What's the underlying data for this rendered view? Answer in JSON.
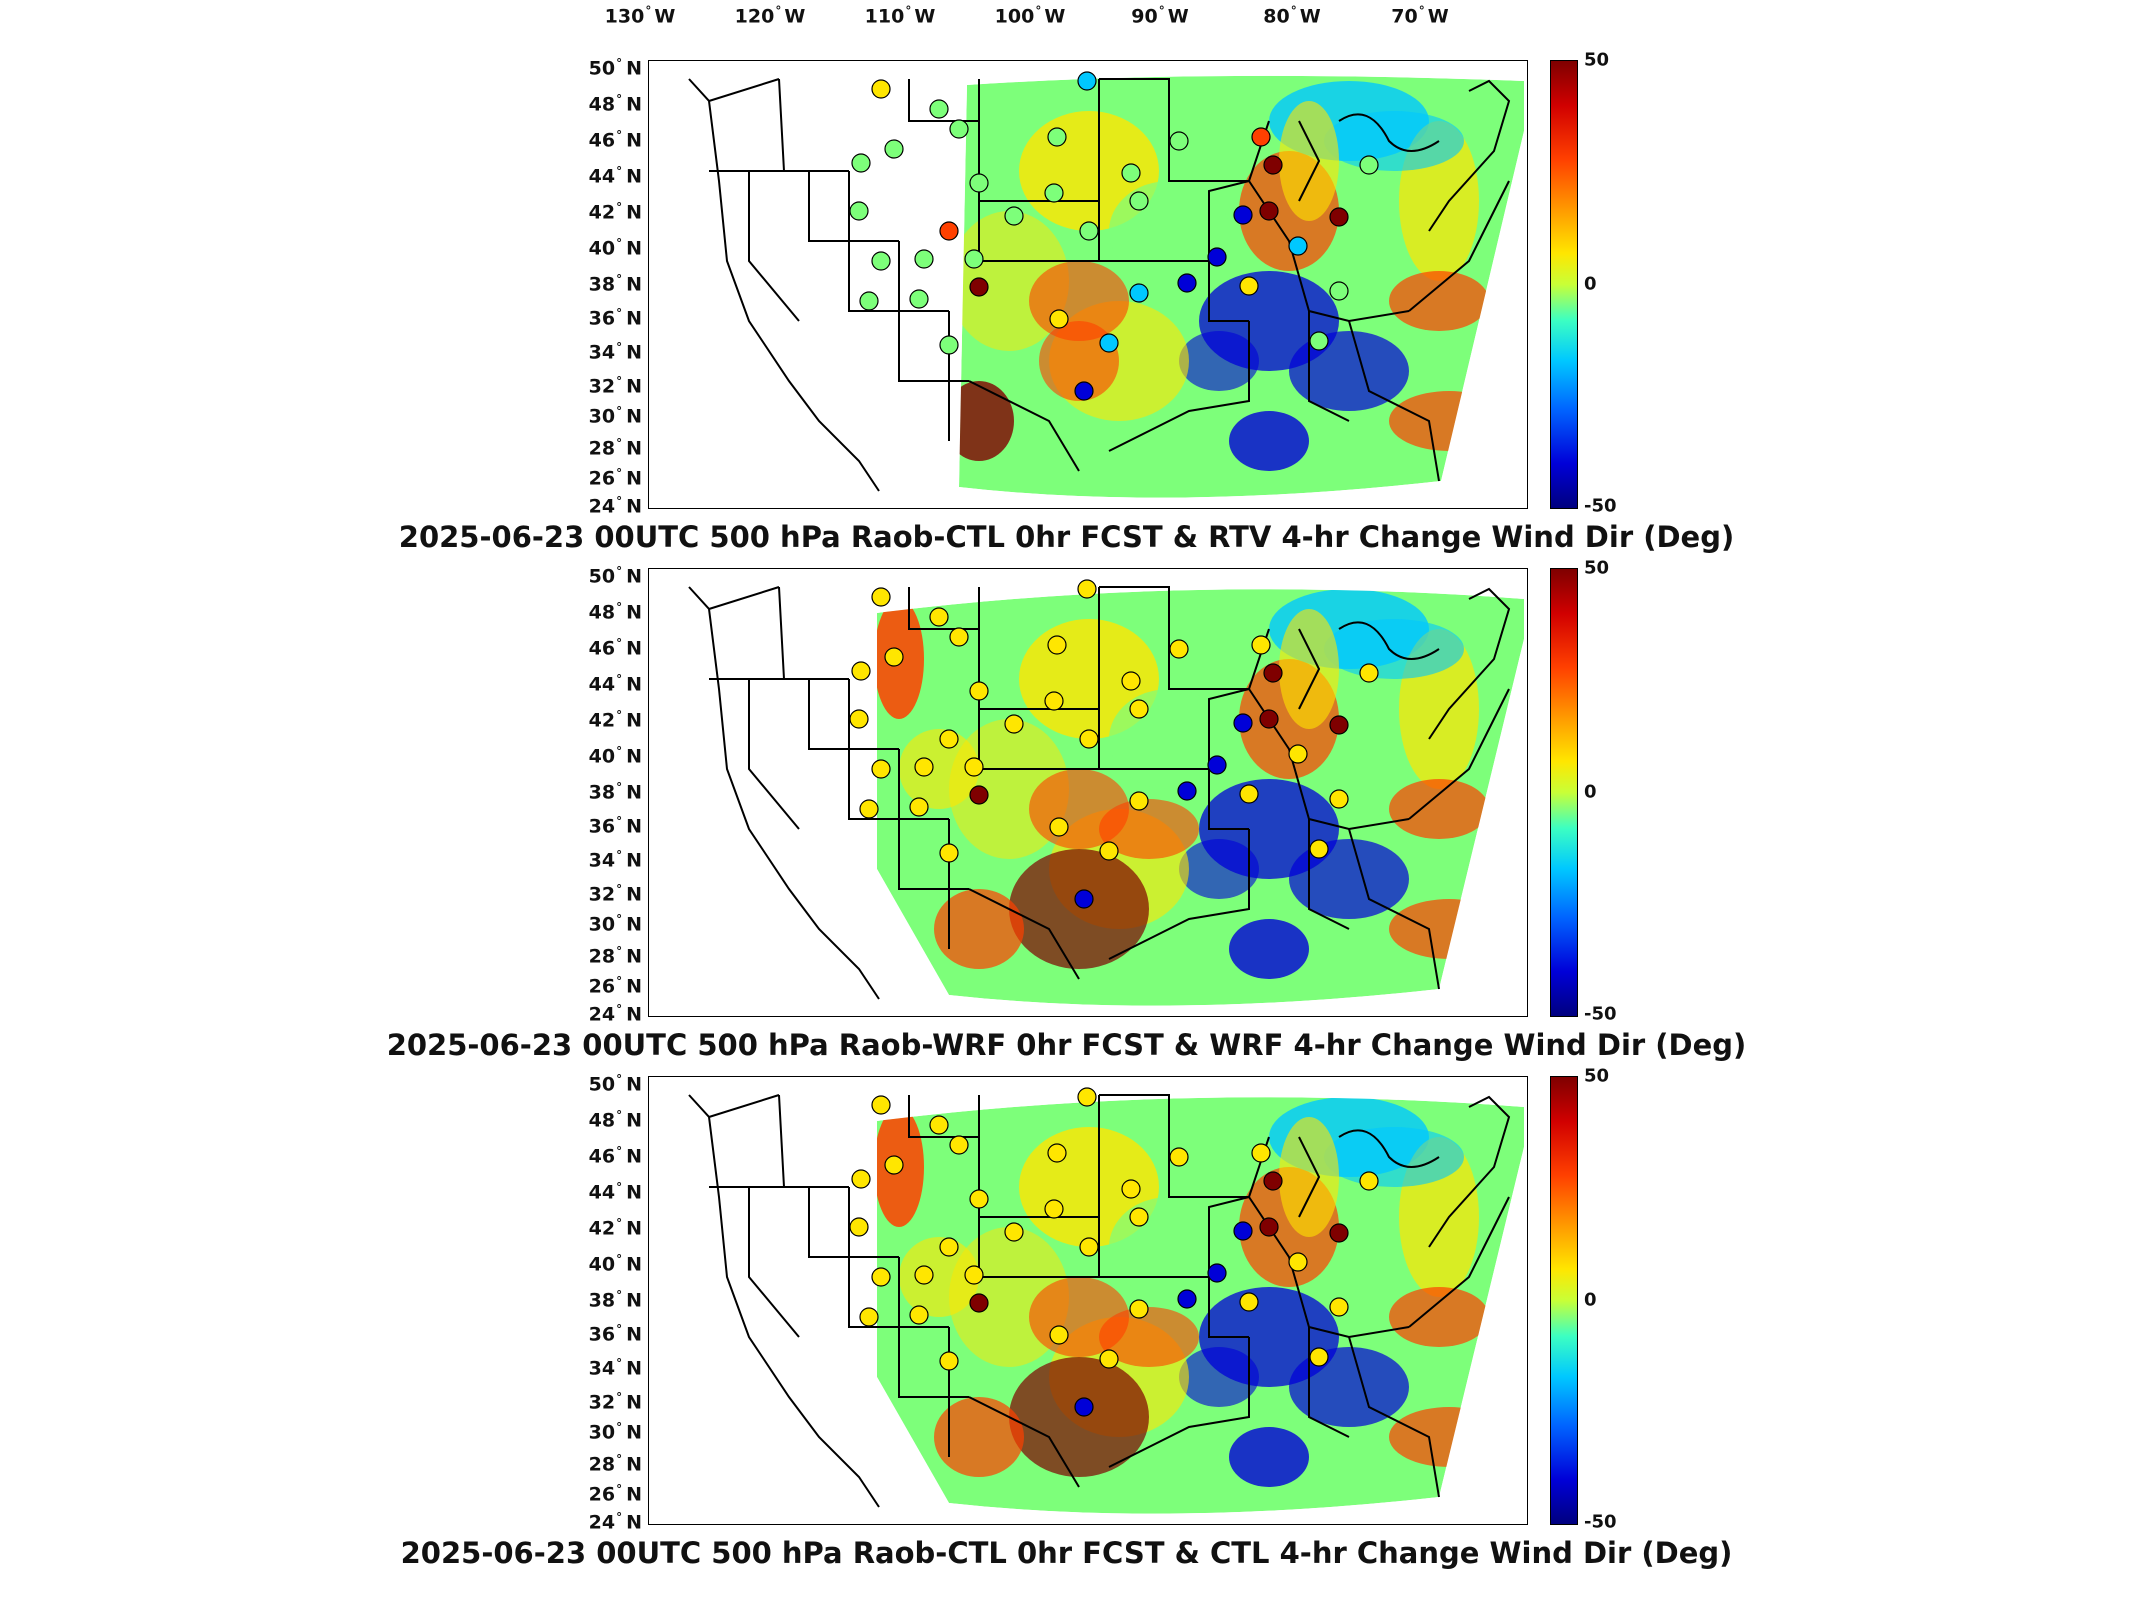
{
  "lon_labels": [
    {
      "deg": "130",
      "hem": "W"
    },
    {
      "deg": "120",
      "hem": "W"
    },
    {
      "deg": "110",
      "hem": "W"
    },
    {
      "deg": "100",
      "hem": "W"
    },
    {
      "deg": "90",
      "hem": "W"
    },
    {
      "deg": "80",
      "hem": "W"
    },
    {
      "deg": "70",
      "hem": "W"
    }
  ],
  "lat_labels": [
    {
      "deg": "50",
      "hem": "N"
    },
    {
      "deg": "48",
      "hem": "N"
    },
    {
      "deg": "46",
      "hem": "N"
    },
    {
      "deg": "44",
      "hem": "N"
    },
    {
      "deg": "42",
      "hem": "N"
    },
    {
      "deg": "40",
      "hem": "N"
    },
    {
      "deg": "38",
      "hem": "N"
    },
    {
      "deg": "36",
      "hem": "N"
    },
    {
      "deg": "34",
      "hem": "N"
    },
    {
      "deg": "32",
      "hem": "N"
    },
    {
      "deg": "30",
      "hem": "N"
    },
    {
      "deg": "28",
      "hem": "N"
    },
    {
      "deg": "26",
      "hem": "N"
    },
    {
      "deg": "24",
      "hem": "N"
    }
  ],
  "colorbar": {
    "max": "50",
    "mid": "0",
    "min": "-50",
    "colors": {
      "max": "#7f0000",
      "high": "#ff4000",
      "midhigh": "#ffe600",
      "mid": "#7dff7a",
      "midlow": "#00c8ff",
      "low": "#0000d8",
      "min": "#00007f"
    }
  },
  "panels": [
    {
      "title": "2025-06-23 00UTC 500 hPa Raob-CTL 0hr FCST & RTV 4-hr Change Wind Dir (Deg)"
    },
    {
      "title": "2025-06-23 00UTC 500 hPa Raob-WRF 0hr FCST & WRF 4-hr Change Wind Dir (Deg)"
    },
    {
      "title": "2025-06-23 00UTC 500 hPa Raob-CTL 0hr FCST & CTL 4-hr Change Wind Dir (Deg)"
    }
  ]
}
